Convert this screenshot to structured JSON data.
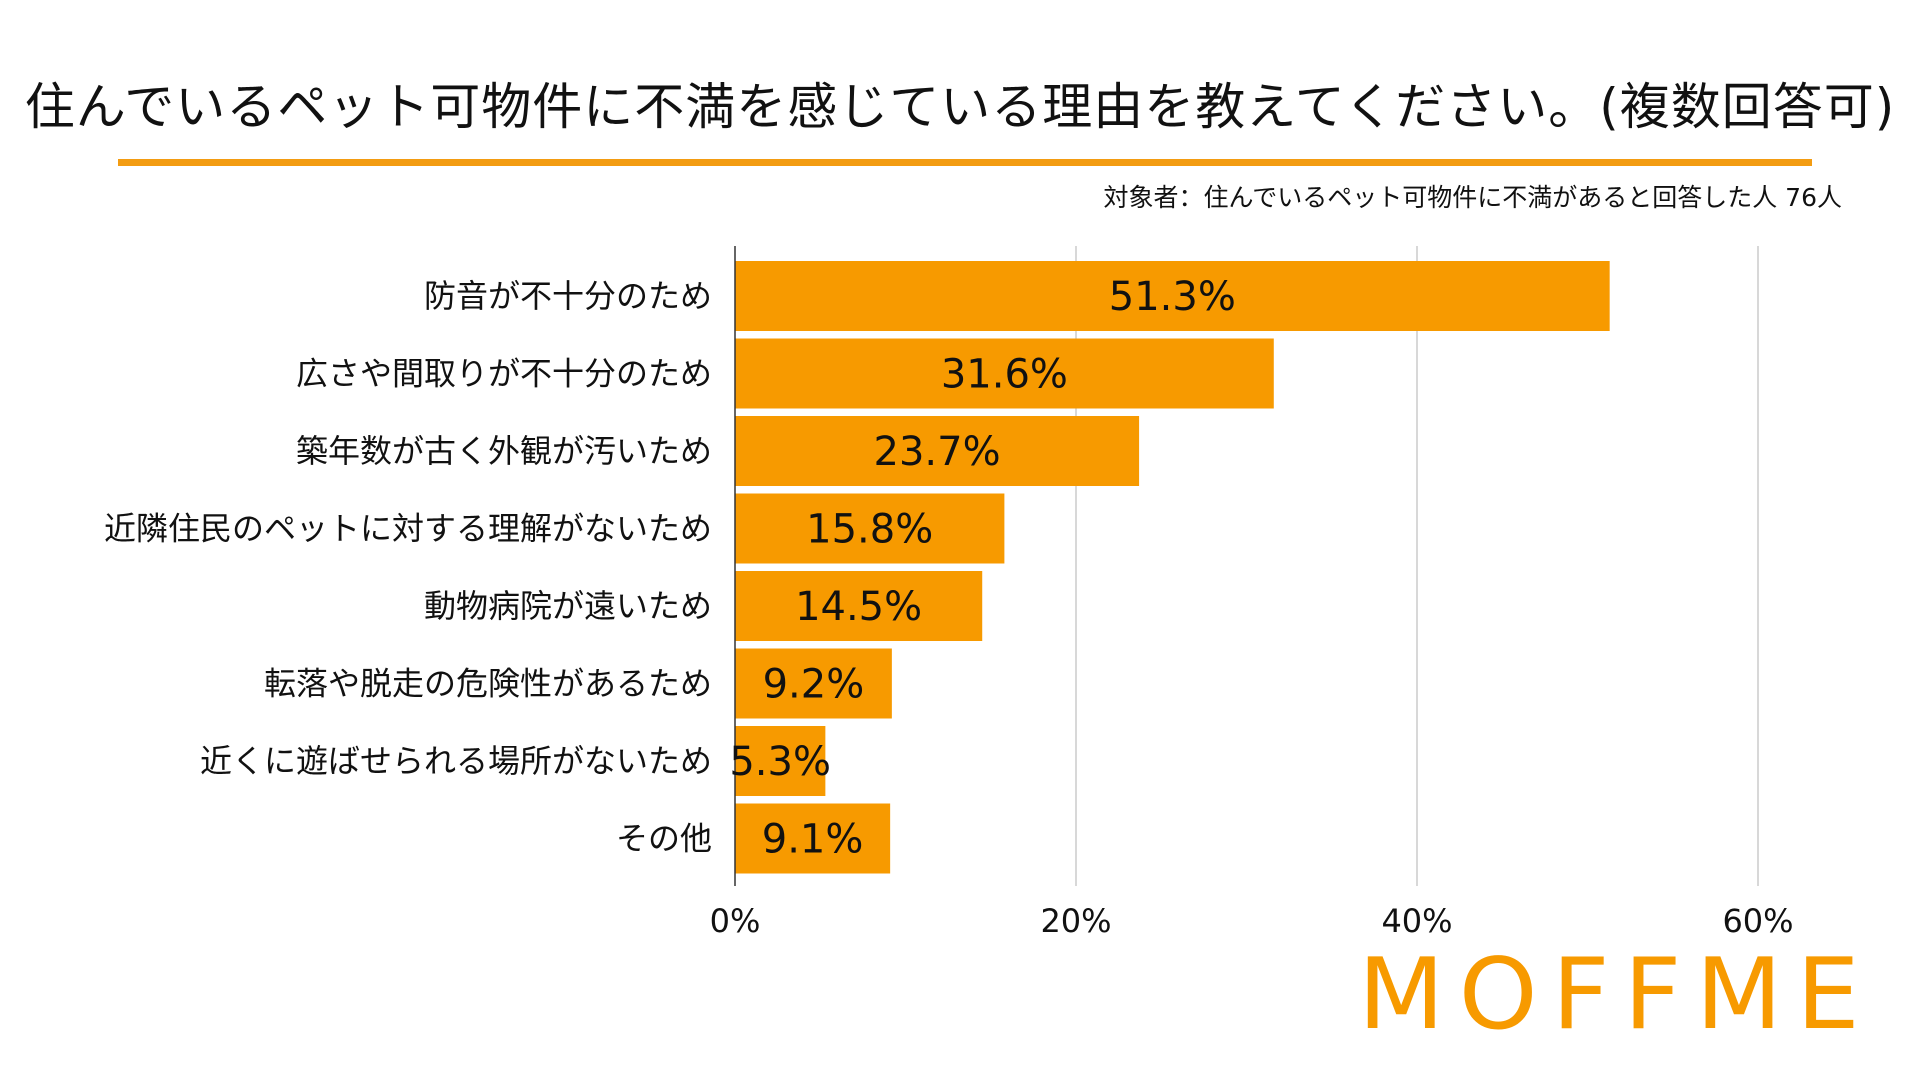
{
  "title": "住んでいるペット可物件に不満を感じている理由を教えてください。(複数回答可)",
  "subtitle": "対象者：住んでいるペット可物件に不満があると回答した人 76人",
  "logo_text": "MOFFME",
  "colors": {
    "bar": "#f79a00",
    "accent_rule": "#f39c12",
    "logo": "#f79a00",
    "grid": "#cccccc",
    "text": "#111111"
  },
  "chart_data": {
    "type": "bar",
    "orientation": "horizontal",
    "categories": [
      "防音が不十分のため",
      "広さや間取りが不十分のため",
      "築年数が古く外観が汚いため",
      "近隣住民のペットに対する理解がないため",
      "動物病院が遠いため",
      "転落や脱走の危険性があるため",
      "近くに遊ばせられる場所がないため",
      "その他"
    ],
    "values": [
      51.3,
      31.6,
      23.7,
      15.8,
      14.5,
      9.2,
      5.3,
      9.1
    ],
    "data_labels": [
      "51.3%",
      "31.6%",
      "23.7%",
      "15.8%",
      "14.5%",
      "9.2%",
      "5.3%",
      "9.1%"
    ],
    "xlim": [
      0,
      65
    ],
    "xticks": [
      0,
      20,
      40,
      60
    ],
    "xtick_labels": [
      "0%",
      "20%",
      "40%",
      "60%"
    ],
    "grid": true,
    "legend": "none"
  }
}
